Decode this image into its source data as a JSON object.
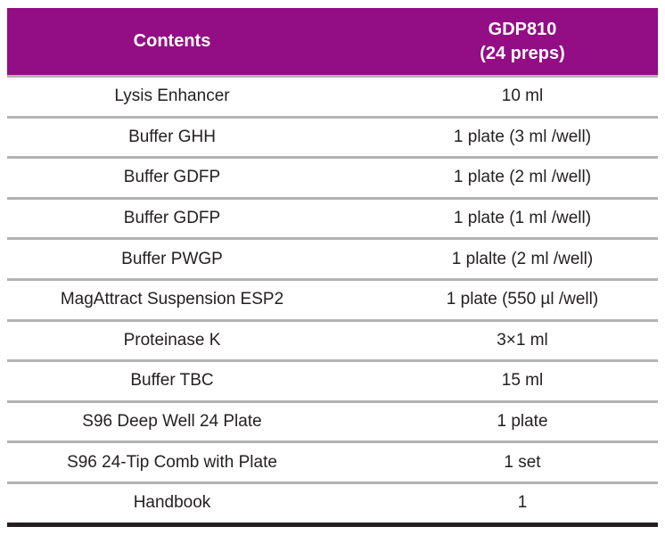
{
  "colors": {
    "header_bg": "#930d84",
    "header_text": "#ffffff",
    "body_text": "#231f20",
    "row_divider": "#b3b3b3",
    "bottom_border": "#231f20",
    "background": "#ffffff"
  },
  "table": {
    "header": {
      "contents_label": "Contents",
      "kit_name": "GDP810",
      "kit_preps": "(24 preps)"
    },
    "rows": [
      {
        "contents": "Lysis Enhancer",
        "amount": "10 ml"
      },
      {
        "contents": "Buffer GHH",
        "amount": "1 plate (3 ml /well)"
      },
      {
        "contents": "Buffer GDFP",
        "amount": "1 plate (2 ml /well)"
      },
      {
        "contents": "Buffer GDFP",
        "amount": "1 plate (1 ml /well)"
      },
      {
        "contents": "Buffer PWGP",
        "amount": "1 plalte (2 ml /well)"
      },
      {
        "contents": "MagAttract Suspension ESP2",
        "amount": "1 plate (550 µl /well)"
      },
      {
        "contents": "Proteinase K",
        "amount": "3×1 ml"
      },
      {
        "contents": "Buffer TBC",
        "amount": "15 ml"
      },
      {
        "contents": "S96 Deep Well 24 Plate",
        "amount": "1 plate"
      },
      {
        "contents": "S96 24-Tip Comb with Plate",
        "amount": "1 set"
      },
      {
        "contents": "Handbook",
        "amount": "1"
      }
    ]
  }
}
